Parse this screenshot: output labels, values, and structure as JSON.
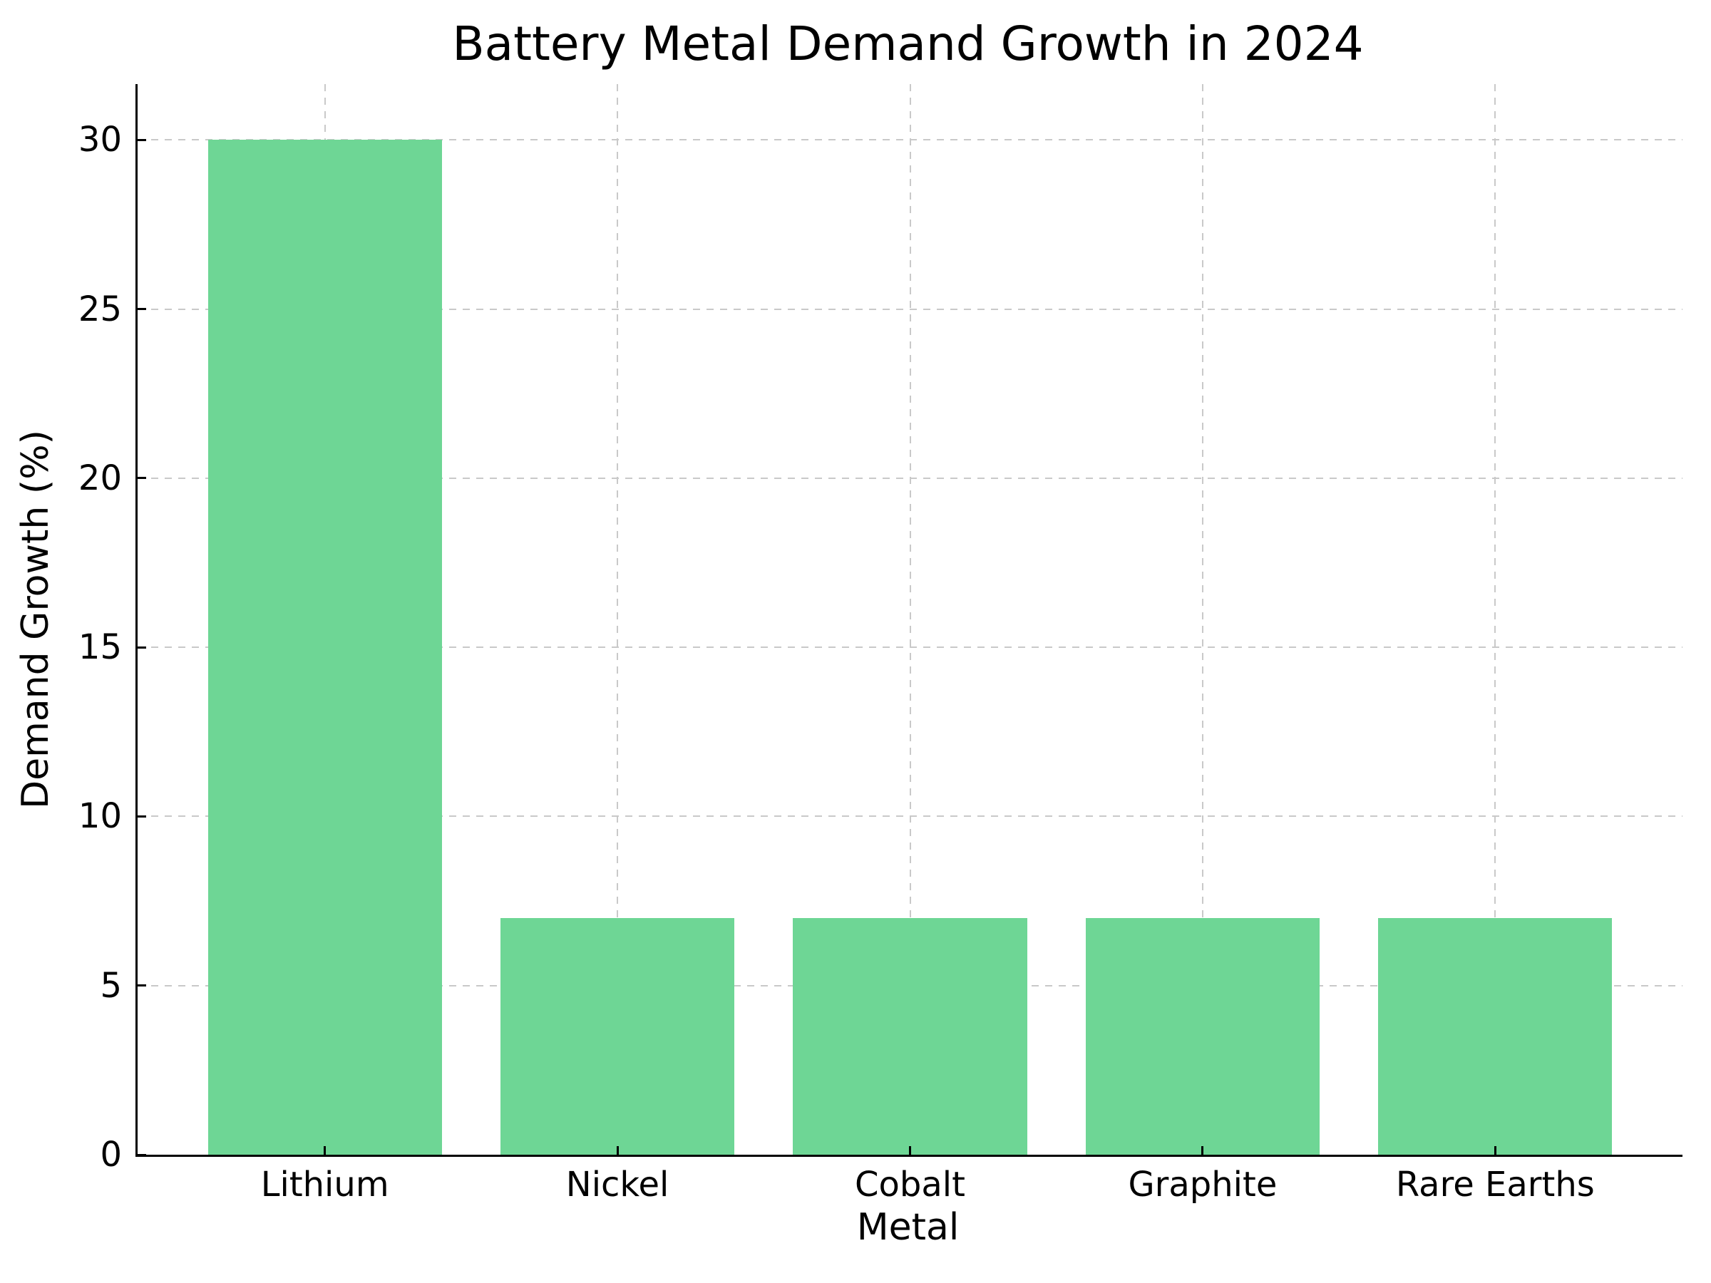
{
  "chart_data": {
    "type": "bar",
    "title": "Battery Metal Demand Growth in 2024",
    "xlabel": "Metal",
    "ylabel": "Demand Growth (%)",
    "categories": [
      "Lithium",
      "Nickel",
      "Cobalt",
      "Graphite",
      "Rare Earths"
    ],
    "values": [
      30,
      7,
      7,
      7,
      7
    ],
    "yticks": [
      0,
      5,
      10,
      15,
      20,
      25,
      30
    ],
    "ylim": [
      0,
      31.65
    ],
    "grid": true,
    "grid_style": "dashed",
    "legend_position": "none",
    "bar_color": "#6ed695",
    "grid_color": "#c9c9c9",
    "axis_color": "#000000",
    "text_color": "#000000",
    "background_color": "#ffffff"
  }
}
